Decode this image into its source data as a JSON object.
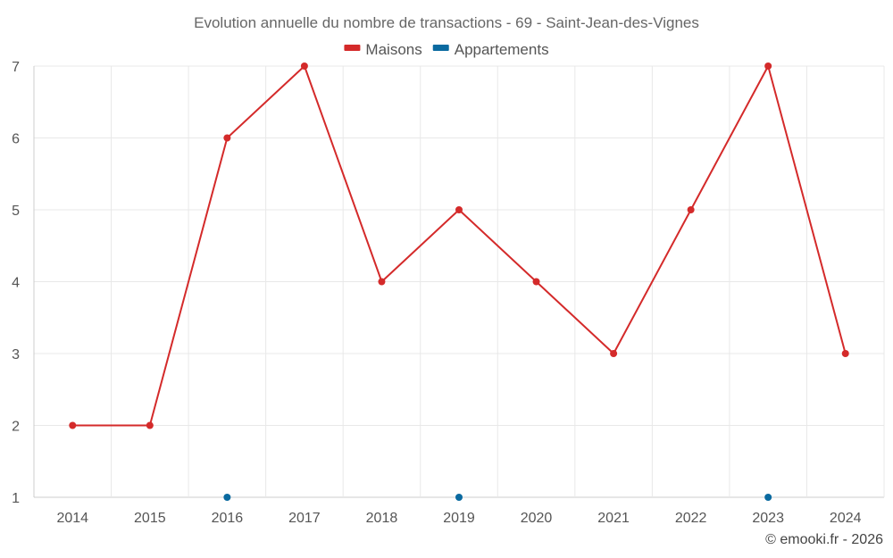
{
  "chart_data": {
    "type": "line",
    "title": "Evolution annuelle du nombre de transactions - 69 - Saint-Jean-des-Vignes",
    "categories": [
      "2014",
      "2015",
      "2016",
      "2017",
      "2018",
      "2019",
      "2020",
      "2021",
      "2022",
      "2023",
      "2024"
    ],
    "ylim": [
      1,
      7
    ],
    "yticks": [
      "1",
      "2",
      "3",
      "4",
      "5",
      "6",
      "7"
    ],
    "legend_position": "top-center",
    "grid": true,
    "series": [
      {
        "name": "Maisons",
        "color": "#d42a2a",
        "line": true,
        "values": [
          2,
          2,
          6,
          7,
          4,
          5,
          4,
          3,
          5,
          7,
          3
        ]
      },
      {
        "name": "Appartements",
        "color": "#0a6aa0",
        "line": false,
        "values": [
          null,
          null,
          1,
          null,
          null,
          1,
          null,
          null,
          null,
          1,
          null
        ]
      }
    ]
  },
  "credit": "© emooki.fr - 2026"
}
